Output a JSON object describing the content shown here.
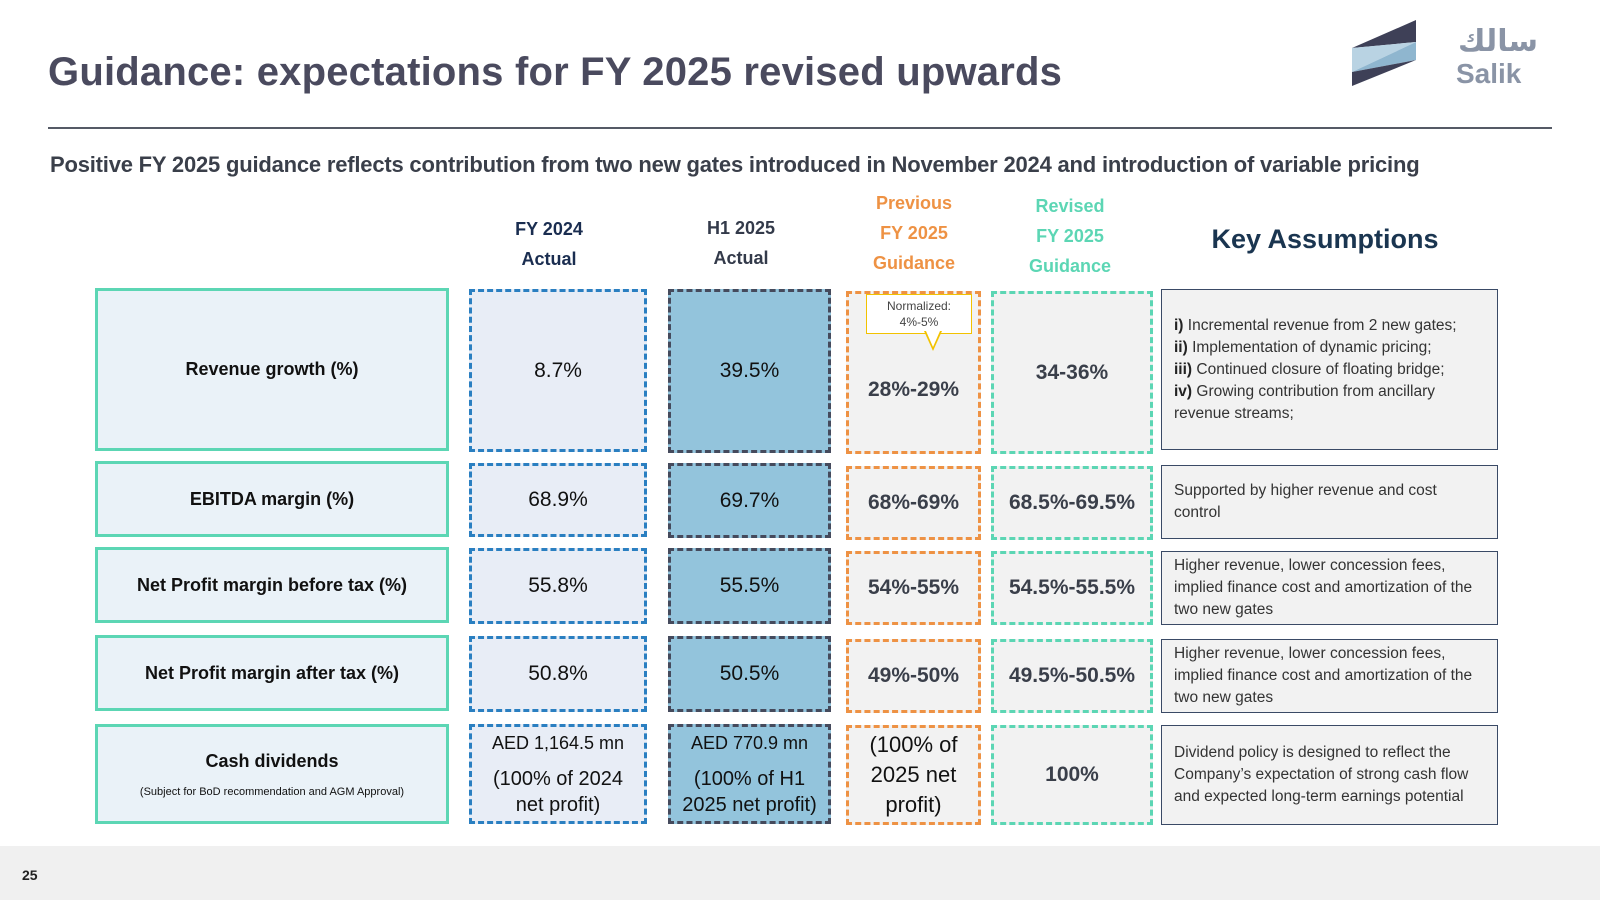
{
  "title": "Guidance: expectations for FY 2025 revised upwards",
  "subtitle": "Positive FY 2025 guidance reflects contribution from two new gates introduced in November 2024 and introduction of variable pricing",
  "logo": {
    "arabic": "سالك",
    "english": "Salik",
    "colors": {
      "light": "#b9d3e3",
      "dark": "#3e4057"
    }
  },
  "columns": {
    "fy2024": {
      "line1": "FY 2024",
      "line2": "Actual",
      "color": "#1a2d50"
    },
    "h12025": {
      "line1": "H1 2025",
      "line2": "Actual",
      "color": "#333a4a"
    },
    "previous": {
      "line1": "Previous",
      "line2": "FY 2025",
      "line3": "Guidance",
      "color": "#ee9244"
    },
    "revised": {
      "line1": "Revised",
      "line2": "FY 2025",
      "line3": "Guidance",
      "color": "#5cd6b4"
    },
    "key_title": "Key Assumptions"
  },
  "callout": {
    "line1": "Normalized:",
    "line2": "4%-5%"
  },
  "rows": {
    "revenue": {
      "label": "Revenue growth (%)",
      "fy2024": "8.7%",
      "h12025": "39.5%",
      "previous": "28%-29%",
      "revised": "34-36%",
      "assumptions": [
        {
          "num": "i)",
          "text": "Incremental revenue from 2 new gates;"
        },
        {
          "num": "ii)",
          "text": "Implementation of dynamic pricing;"
        },
        {
          "num": "iii)",
          "text": "Continued closure of floating bridge;"
        },
        {
          "num": "iv)",
          "text": "Growing contribution from ancillary revenue streams;"
        }
      ]
    },
    "ebitda": {
      "label": "EBITDA margin (%)",
      "fy2024": "68.9%",
      "h12025": "69.7%",
      "previous": "68%-69%",
      "revised": "68.5%-69.5%",
      "assumption": "Supported by higher revenue and cost control"
    },
    "npbt": {
      "label": "Net Profit margin before tax (%)",
      "fy2024": "55.8%",
      "h12025": "55.5%",
      "previous": "54%-55%",
      "revised": "54.5%-55.5%",
      "assumption": "Higher revenue, lower concession fees, implied finance cost and amortization of the two new gates"
    },
    "npat": {
      "label": "Net Profit margin after tax (%)",
      "fy2024": "50.8%",
      "h12025": "50.5%",
      "previous": "49%-50%",
      "revised": "49.5%-50.5%",
      "assumption": "Higher revenue, lower concession fees, implied finance cost and amortization of the two new gates"
    },
    "dividends": {
      "label": "Cash dividends",
      "sublabel": "(Subject for BoD recommendation and AGM Approval)",
      "fy2024_amount": "AED 1,164.5 mn",
      "fy2024_note1": "(100% of 2024",
      "fy2024_note2": "net profit)",
      "h12025_amount": "AED 770.9 mn",
      "h12025_note1": "(100% of H1",
      "h12025_note2": "2025 net profit)",
      "previous_line1": "(100% of",
      "previous_line2": "2025 net",
      "previous_line3": "profit)",
      "revised": "100%",
      "assumption": "Dividend policy is designed to reflect the Company’s expectation of strong cash flow and expected long-term earnings potential"
    }
  },
  "page_number": "25"
}
